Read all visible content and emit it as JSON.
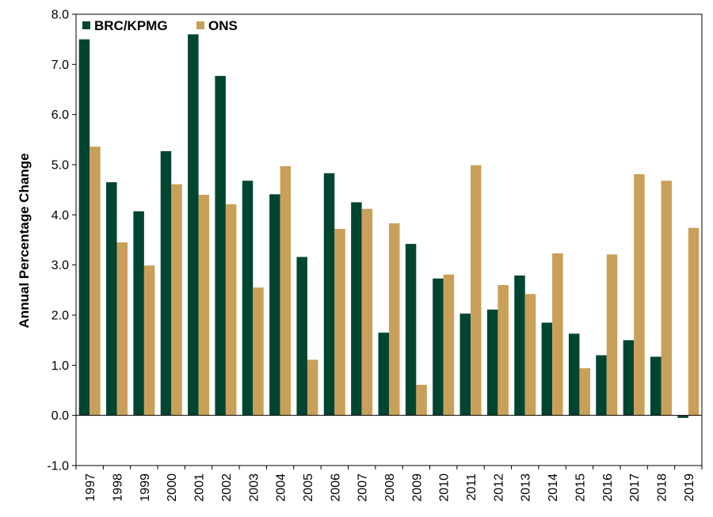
{
  "chart_data": {
    "type": "bar",
    "title": "",
    "xlabel": "",
    "ylabel": "Annual Percentage Change",
    "ylim": [
      -1.0,
      8.0
    ],
    "y_ticks": [
      "-1.0",
      "0.0",
      "1.0",
      "2.0",
      "3.0",
      "4.0",
      "5.0",
      "6.0",
      "7.0",
      "8.0"
    ],
    "grid": false,
    "legend_position": "top-left",
    "categories": [
      "1997",
      "1998",
      "1999",
      "2000",
      "2001",
      "2002",
      "2003",
      "2004",
      "2005",
      "2006",
      "2007",
      "2008",
      "2009",
      "2010",
      "2011",
      "2012",
      "2013",
      "2014",
      "2015",
      "2016",
      "2017",
      "2018",
      "2019"
    ],
    "series": [
      {
        "name": "BRC/KPMG",
        "color": "#004532",
        "values": [
          7.5,
          4.65,
          4.07,
          5.27,
          7.6,
          6.77,
          4.68,
          4.41,
          3.16,
          4.83,
          4.25,
          1.65,
          3.42,
          2.73,
          2.03,
          2.11,
          2.79,
          1.85,
          1.63,
          1.2,
          1.5,
          1.17,
          -0.05
        ]
      },
      {
        "name": "ONS",
        "color": "#C9A05A",
        "values": [
          5.36,
          3.45,
          2.99,
          4.61,
          4.4,
          4.21,
          2.55,
          4.97,
          1.11,
          3.72,
          4.12,
          3.83,
          0.61,
          2.81,
          4.99,
          2.6,
          2.42,
          3.23,
          0.94,
          3.21,
          4.81,
          4.68,
          3.74
        ]
      }
    ]
  }
}
